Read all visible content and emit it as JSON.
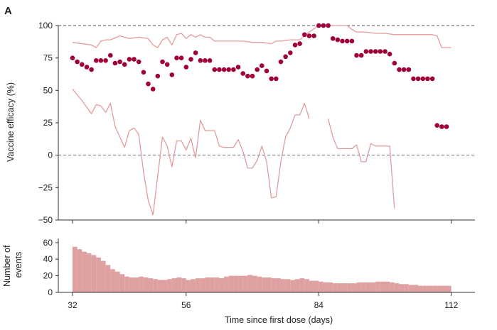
{
  "panel_label": "A",
  "colors": {
    "point": "#a0003a",
    "ci_line": "#e29c9c",
    "bar": "#dea0a0",
    "bar_stroke": "#d48e8e",
    "axis": "#333333",
    "reference_line": "#555555"
  },
  "chart_data": [
    {
      "type": "scatter",
      "title": "",
      "xlabel": "",
      "ylabel": "Vaccine efficacy (%)",
      "xlim": [
        29,
        117
      ],
      "ylim": [
        -50,
        100
      ],
      "yticks": [
        "-50",
        "-25",
        "0",
        "25",
        "50",
        "75",
        "100"
      ],
      "reference_lines_y": [
        100,
        0
      ],
      "points": {
        "x": [
          32,
          33,
          34,
          35,
          36,
          37,
          38,
          39,
          40,
          41,
          42,
          43,
          44,
          45,
          46,
          47,
          48,
          49,
          50,
          51,
          52,
          53,
          54,
          55,
          56,
          57,
          58,
          59,
          60,
          61,
          62,
          63,
          64,
          65,
          66,
          67,
          68,
          69,
          70,
          71,
          72,
          73,
          74,
          75,
          76,
          77,
          78,
          79,
          80,
          81,
          82,
          83,
          84,
          85,
          86,
          87,
          88,
          89,
          90,
          91,
          92,
          93,
          94,
          95,
          96,
          97,
          98,
          99,
          100,
          101,
          102,
          103,
          104,
          105,
          106,
          107,
          108,
          109,
          110,
          111
        ],
        "y": [
          75,
          72,
          70,
          68,
          66,
          73,
          73,
          73,
          77,
          71,
          72,
          70,
          74,
          74,
          72,
          64,
          55,
          51,
          61,
          72,
          70,
          62,
          75,
          75,
          68,
          74,
          79,
          73,
          73,
          73,
          66,
          66,
          66,
          66,
          66,
          68,
          63,
          61,
          61,
          66,
          69,
          65,
          59,
          59,
          72,
          76,
          79,
          85,
          86,
          93,
          92,
          92,
          100,
          100,
          100,
          90,
          89,
          88,
          88,
          88,
          77,
          77,
          80,
          80,
          80,
          80,
          80,
          78,
          71,
          66,
          66,
          66,
          59,
          59,
          59,
          59,
          59,
          23,
          22,
          22
        ]
      },
      "ci_upper": {
        "x": [
          32,
          34,
          36,
          37,
          38,
          39,
          40,
          42,
          44,
          46,
          48,
          49,
          50,
          51,
          52,
          53,
          54,
          55,
          56,
          57,
          58,
          59,
          60,
          61,
          62,
          64,
          66,
          68,
          70,
          72,
          74,
          75,
          76,
          78,
          80,
          82,
          84,
          86,
          88,
          90,
          91,
          92,
          94,
          96,
          98,
          100,
          102,
          104,
          106,
          108,
          109,
          110,
          112
        ],
        "y": [
          87,
          86,
          85,
          83,
          88,
          89,
          89,
          92,
          90,
          91,
          90,
          85,
          83,
          89,
          91,
          85,
          93,
          94,
          90,
          93,
          91,
          93,
          91,
          91,
          88,
          88,
          88,
          88,
          87,
          87,
          86,
          88,
          88,
          89,
          89,
          95,
          100,
          100,
          100,
          100,
          97,
          95,
          95,
          94,
          94,
          93,
          93,
          93,
          93,
          93,
          92,
          83,
          83
        ]
      },
      "ci_lower": [
        {
          "x": [
            32,
            34,
            35,
            36,
            37,
            38,
            39,
            40,
            41,
            42,
            43,
            44,
            45,
            46,
            47,
            48,
            49,
            50,
            51,
            52,
            53,
            54,
            55,
            56,
            57,
            58,
            59,
            60,
            61,
            62,
            63,
            64,
            65,
            66,
            67,
            68,
            69,
            70,
            71,
            72,
            73,
            74,
            75,
            76,
            77,
            78,
            79,
            80,
            81,
            82
          ],
          "y": [
            51,
            42,
            37,
            32,
            39,
            38,
            33,
            40,
            22,
            14,
            6,
            19,
            21,
            16,
            -13,
            -35,
            -46,
            -16,
            14,
            7,
            -9,
            11,
            11,
            4,
            13,
            -2,
            27,
            19,
            19,
            19,
            7,
            6,
            6,
            6,
            12,
            3,
            -10,
            -10,
            -4,
            7,
            -5,
            -33,
            -32,
            -5,
            14,
            21,
            31,
            31,
            40,
            28
          ]
        },
        {
          "x": [
            86,
            87,
            88,
            89,
            90,
            91,
            92,
            93,
            94,
            95,
            96,
            97,
            98,
            99,
            100
          ],
          "y": [
            28,
            14,
            5,
            5,
            5,
            5,
            8,
            -5,
            -5,
            9,
            7,
            7,
            7,
            7,
            -41
          ]
        }
      ]
    },
    {
      "type": "bar",
      "title": "",
      "xlabel": "Time since first dose (days)",
      "ylabel": "Number of events",
      "ylim": [
        0,
        65
      ],
      "yticks": [
        "0",
        "20",
        "40",
        "60"
      ],
      "xticks": [
        "32",
        "56",
        "84",
        "112"
      ],
      "x": [
        32,
        33,
        34,
        35,
        36,
        37,
        38,
        39,
        40,
        41,
        42,
        43,
        44,
        45,
        46,
        47,
        48,
        49,
        50,
        51,
        52,
        53,
        54,
        55,
        56,
        57,
        58,
        59,
        60,
        61,
        62,
        63,
        64,
        65,
        66,
        67,
        68,
        69,
        70,
        71,
        72,
        73,
        74,
        75,
        76,
        77,
        78,
        79,
        80,
        81,
        82,
        83,
        84,
        85,
        86,
        87,
        88,
        89,
        90,
        91,
        92,
        93,
        94,
        95,
        96,
        97,
        98,
        99,
        100,
        101,
        102,
        103,
        104,
        105,
        106,
        107,
        108,
        109,
        110,
        111
      ],
      "values": [
        55,
        52,
        49,
        47,
        45,
        42,
        38,
        33,
        28,
        25,
        22,
        19,
        18,
        18,
        19,
        18,
        17,
        16,
        15,
        15,
        16,
        17,
        18,
        17,
        15,
        16,
        17,
        17,
        18,
        18,
        18,
        17,
        19,
        20,
        20,
        20,
        20,
        21,
        20,
        19,
        18,
        18,
        17,
        17,
        16,
        16,
        15,
        16,
        17,
        16,
        14,
        14,
        13,
        12,
        12,
        11,
        11,
        11,
        11,
        11,
        12,
        12,
        12,
        12,
        13,
        13,
        13,
        12,
        11,
        10,
        10,
        9,
        9,
        8,
        8,
        8,
        8,
        8,
        8,
        8
      ]
    }
  ]
}
